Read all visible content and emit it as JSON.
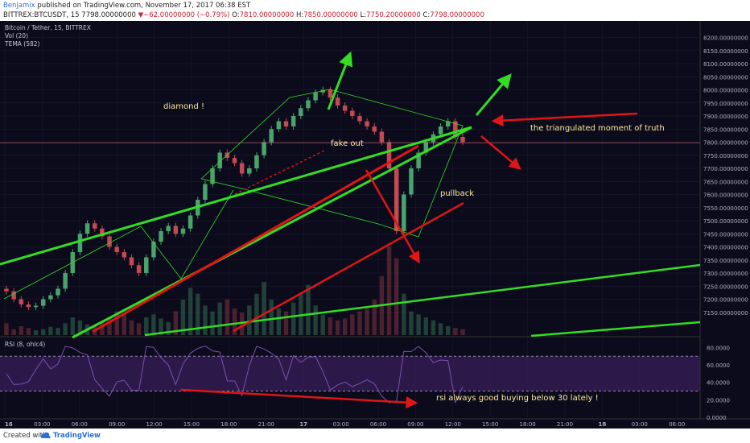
{
  "header": {
    "author": "Benjamix",
    "published": "published on TradingView.com, November 17, 2017 06:38 EST",
    "symbol": "BITTREX:BTCUSDT, 15",
    "last": "7798.00000000",
    "change": "−62.00000000 (−0.79%)",
    "o_label": "O:",
    "o_value": "7810.00000000",
    "h_label": "H:",
    "h_value": "7850.00000000",
    "l_label": "L:",
    "l_value": "7750.20000000",
    "c_label": "C:",
    "c_value": "7798.00000000"
  },
  "legend": {
    "title": "Bitcoin / Tether, 15, BITTREX",
    "vol": "Vol (20)",
    "tema": "TEMA (582)"
  },
  "rsi_label": "RSI (8, ohlc4)",
  "annotations": {
    "diamond": "diamond !",
    "fakeout": "fake out",
    "pullback": "pullback",
    "truth": "the triangulated moment of truth",
    "rsi_note": "rsi always good buying below 30 lately !"
  },
  "footer": {
    "created": "Created with",
    "brand": "TradingView"
  },
  "colors": {
    "background": "#0b0b1c",
    "up": "#4aa36b",
    "down": "#c34a52",
    "green_line": "#33dd22",
    "red_line": "#e01515",
    "annotation_text": "#ffe89a",
    "rsi_band": "#3a1f58",
    "rsi_line": "#7b4fb0"
  },
  "chart_data": [
    {
      "type": "candlestick",
      "title": "Bitcoin / Tether, 15, BITTREX",
      "ylim": [
        7100,
        8220
      ],
      "y_ticks": [
        "8200.00000000",
        "8150.00000000",
        "8100.00000000",
        "8050.00000000",
        "8000.00000000",
        "7950.00000000",
        "7900.00000000",
        "7850.00000000",
        "7800.00000000",
        "7750.00000000",
        "7700.00000000",
        "7650.00000000",
        "7600.00000000",
        "7550.00000000",
        "7500.00000000",
        "7450.00000000",
        "7400.00000000",
        "7350.00000000",
        "7300.00000000",
        "7250.00000000",
        "7200.00000000",
        "7150.00000000"
      ],
      "x_ticks": [
        "16",
        "03:00",
        "06:00",
        "09:00",
        "12:00",
        "15:00",
        "18:00",
        "21:00",
        "17",
        "03:00",
        "06:00",
        "09:00",
        "12:00",
        "15:00",
        "18:00",
        "21:00",
        "18",
        "03:00",
        "06:00"
      ],
      "current_price": 7798,
      "close_path": [
        7230,
        7200,
        7180,
        7170,
        7175,
        7200,
        7215,
        7240,
        7300,
        7380,
        7450,
        7490,
        7470,
        7440,
        7400,
        7380,
        7360,
        7330,
        7300,
        7360,
        7420,
        7460,
        7480,
        7450,
        7470,
        7520,
        7580,
        7640,
        7700,
        7760,
        7740,
        7720,
        7680,
        7700,
        7750,
        7800,
        7850,
        7880,
        7860,
        7900,
        7930,
        7960,
        7990,
        8000,
        7970,
        7940,
        7920,
        7900,
        7880,
        7860,
        7840,
        7800,
        7700,
        7460,
        7600,
        7700,
        7760,
        7800,
        7830,
        7860,
        7880,
        7820,
        7800
      ],
      "volume": [
        20,
        10,
        15,
        12,
        8,
        10,
        14,
        12,
        20,
        30,
        25,
        18,
        15,
        22,
        30,
        40,
        35,
        25,
        20,
        30,
        35,
        28,
        22,
        40,
        60,
        80,
        70,
        50,
        40,
        55,
        60,
        45,
        38,
        50,
        70,
        90,
        60,
        45,
        40,
        55,
        70,
        85,
        50,
        35,
        30,
        25,
        28,
        35,
        40,
        45,
        60,
        100,
        150,
        130,
        70,
        40,
        35,
        30,
        25,
        20,
        15,
        12,
        10
      ]
    },
    {
      "type": "line",
      "title": "RSI (8, ohlc4)",
      "ylim": [
        0,
        85
      ],
      "y_ticks": [
        "80.0000",
        "60.0000",
        "40.0000",
        "20.0000",
        "0.0000"
      ],
      "bands": [
        30,
        70
      ]
    }
  ]
}
